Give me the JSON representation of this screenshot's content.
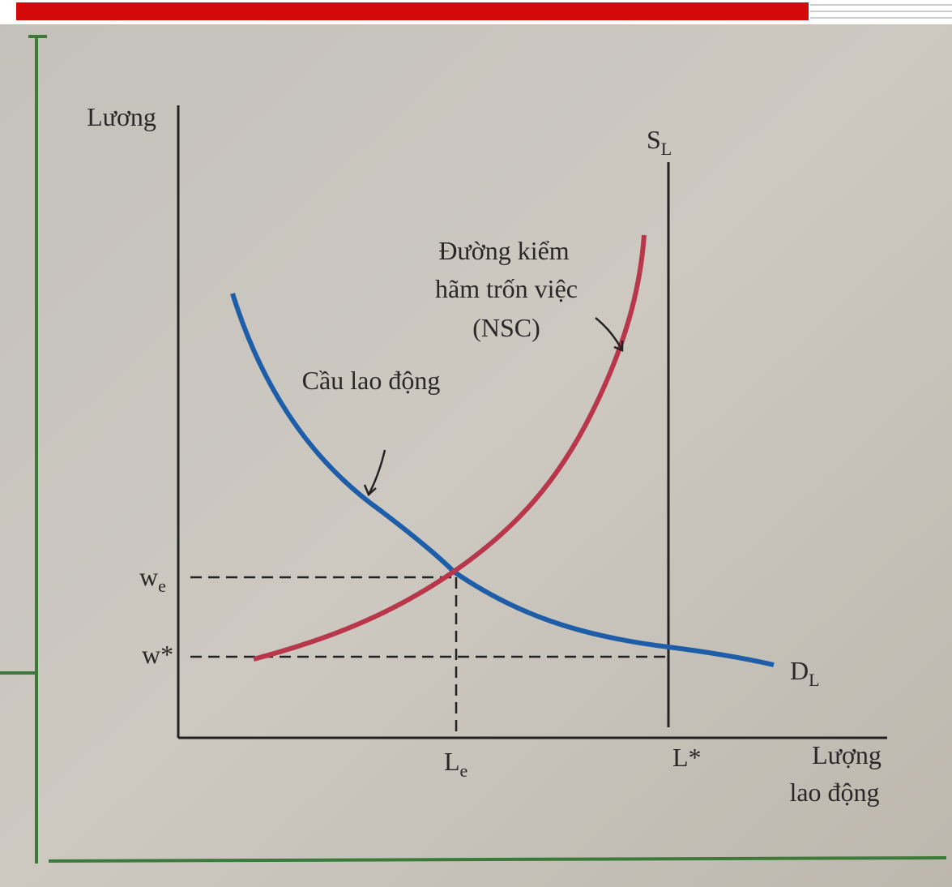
{
  "axes": {
    "y_label": "Lương",
    "x_label": [
      "Lượng",
      "lao động"
    ]
  },
  "curves": {
    "supply": {
      "main": "S",
      "sub": "L"
    },
    "nsc": [
      "Đường kiểm",
      "hãm trốn việc",
      "(NSC)"
    ],
    "demand_label": "Cầu lao động",
    "demand": {
      "main": "D",
      "sub": "L"
    }
  },
  "levels": {
    "we": {
      "main": "w",
      "sub": "e"
    },
    "wstar": "w*",
    "le": {
      "main": "L",
      "sub": "e"
    },
    "lstar": "L*"
  }
}
